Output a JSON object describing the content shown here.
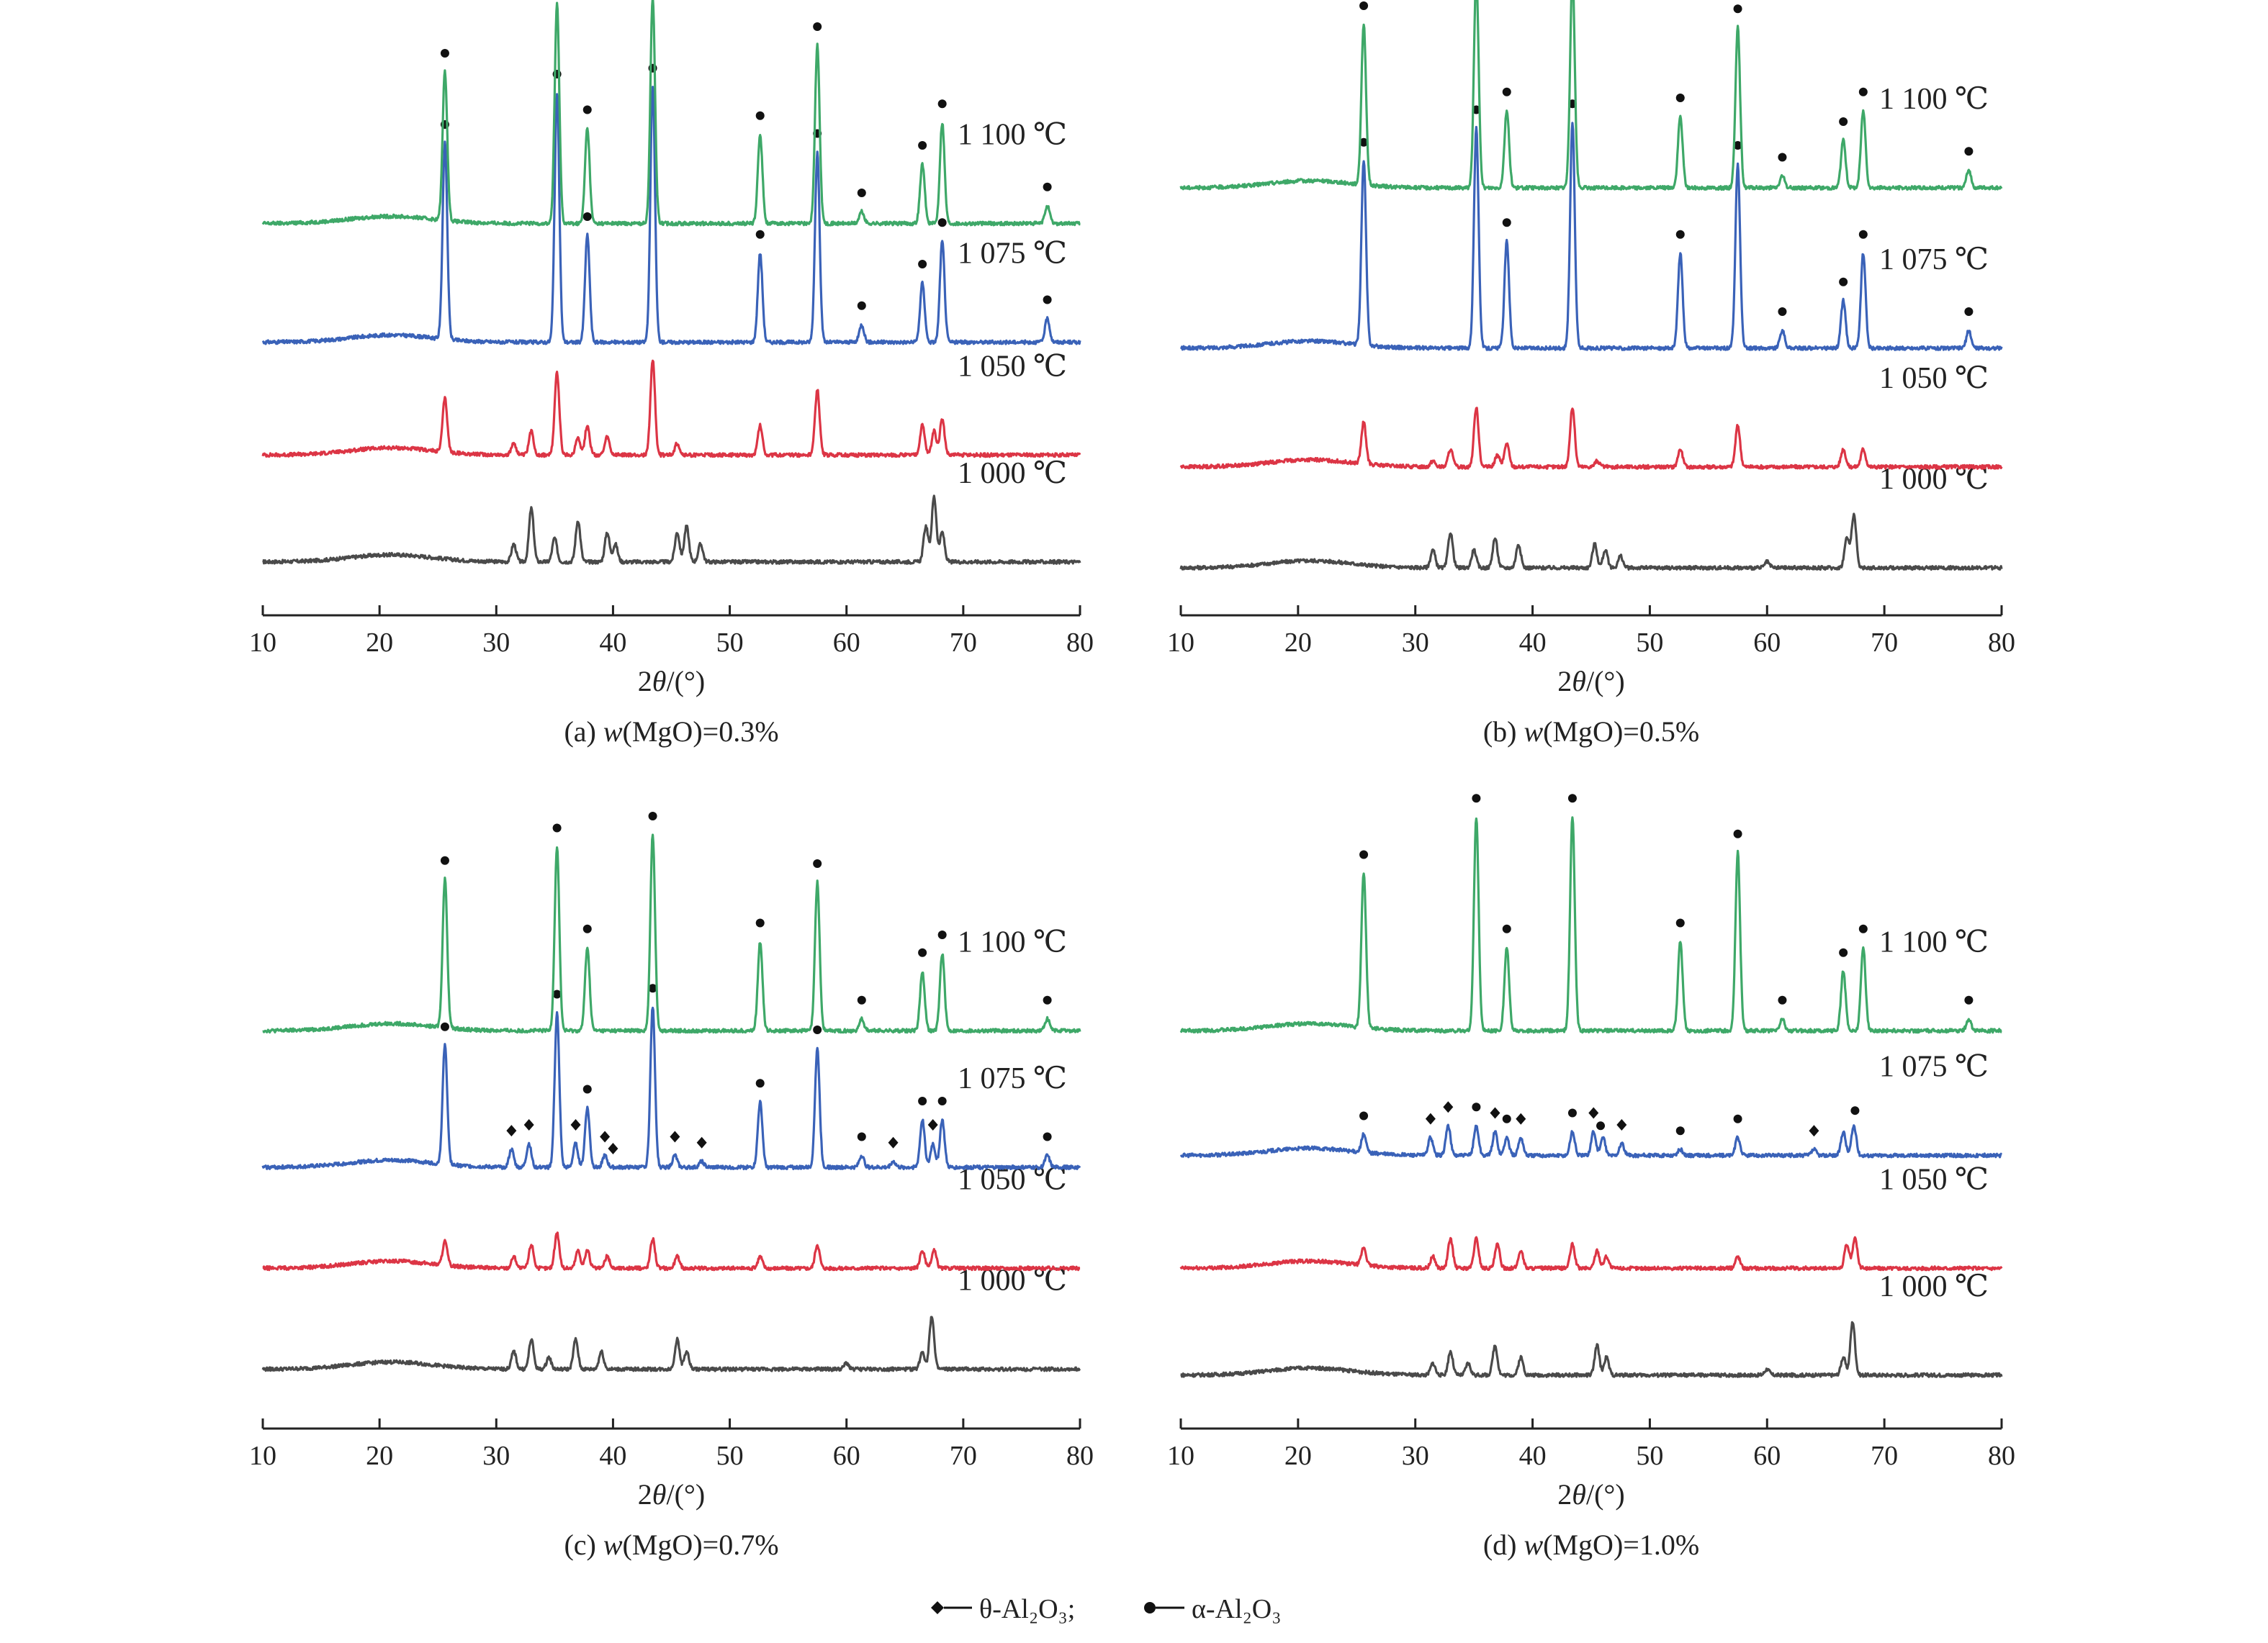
{
  "figure": {
    "legend": {
      "theta_label": "θ-Al₂O₃;",
      "alpha_label": "α-Al₂O₃"
    }
  },
  "colors": {
    "1000": "#4a4a4a",
    "1050": "#dc3545",
    "1075": "#3a62b8",
    "1100": "#3ea868",
    "marker": "#111111"
  },
  "chart_data": [
    {
      "panel": "a",
      "type": "line",
      "caption_prefix": "(a) ",
      "caption_var": "w",
      "caption_rest": "(MgO)=0.3%",
      "xlabel_theta": "θ",
      "xlabel_rest": "/(°)",
      "xlim": [
        10,
        80
      ],
      "xticks": [
        10,
        20,
        30,
        40,
        50,
        60,
        70,
        80
      ],
      "series": [
        {
          "name": "1 000 ℃",
          "temp": "1000",
          "baseline": 0.09,
          "peaks": [
            [
              31.5,
              0.03
            ],
            [
              33,
              0.09
            ],
            [
              35,
              0.04
            ],
            [
              37,
              0.07
            ],
            [
              39.5,
              0.05
            ],
            [
              40.2,
              0.03
            ],
            [
              45.5,
              0.05
            ],
            [
              46.3,
              0.06
            ],
            [
              47.5,
              0.03
            ],
            [
              66.8,
              0.06
            ],
            [
              67.5,
              0.11
            ],
            [
              68.2,
              0.05
            ]
          ],
          "alpha": [],
          "theta": []
        },
        {
          "name": "1 050 ℃",
          "temp": "1050",
          "baseline": 0.27,
          "peaks": [
            [
              25.6,
              0.09
            ],
            [
              31.5,
              0.02
            ],
            [
              33,
              0.04
            ],
            [
              35.2,
              0.14
            ],
            [
              37,
              0.03
            ],
            [
              37.8,
              0.05
            ],
            [
              39.5,
              0.03
            ],
            [
              43.4,
              0.16
            ],
            [
              45.5,
              0.02
            ],
            [
              52.6,
              0.05
            ],
            [
              57.5,
              0.11
            ],
            [
              66.5,
              0.05
            ],
            [
              67.5,
              0.04
            ],
            [
              68.2,
              0.06
            ]
          ],
          "alpha": [],
          "theta": []
        },
        {
          "name": "1 075 ℃",
          "temp": "1075",
          "baseline": 0.46,
          "peaks": [
            [
              25.6,
              0.33
            ],
            [
              35.2,
              0.42
            ],
            [
              37.8,
              0.18
            ],
            [
              43.4,
              0.43
            ],
            [
              52.6,
              0.15
            ],
            [
              57.5,
              0.32
            ],
            [
              61.3,
              0.03
            ],
            [
              66.5,
              0.1
            ],
            [
              68.2,
              0.17
            ],
            [
              77.2,
              0.04
            ]
          ],
          "alpha": [
            25.6,
            35.2,
            37.8,
            43.4,
            52.6,
            57.5,
            61.3,
            66.5,
            68.2,
            77.2
          ],
          "theta": []
        },
        {
          "name": "1 100 ℃",
          "temp": "1100",
          "baseline": 0.66,
          "peaks": [
            [
              25.6,
              0.25
            ],
            [
              35.2,
              0.37
            ],
            [
              37.8,
              0.16
            ],
            [
              43.4,
              0.38
            ],
            [
              52.6,
              0.15
            ],
            [
              57.5,
              0.3
            ],
            [
              61.3,
              0.02
            ],
            [
              66.5,
              0.1
            ],
            [
              68.2,
              0.17
            ],
            [
              77.2,
              0.03
            ]
          ],
          "alpha": [
            25.6,
            35.2,
            37.8,
            43.4,
            52.6,
            57.5,
            61.3,
            66.5,
            68.2,
            77.2
          ],
          "theta": []
        }
      ]
    },
    {
      "panel": "b",
      "type": "line",
      "caption_prefix": "(b) ",
      "caption_var": "w",
      "caption_rest": "(MgO)=0.5%",
      "xlabel_theta": "θ",
      "xlabel_rest": "/(°)",
      "xlim": [
        10,
        80
      ],
      "xticks": [
        10,
        20,
        30,
        40,
        50,
        60,
        70,
        80
      ],
      "series": [
        {
          "name": "1 000 ℃",
          "temp": "1000",
          "baseline": 0.08,
          "peaks": [
            [
              31.5,
              0.03
            ],
            [
              33,
              0.06
            ],
            [
              35,
              0.03
            ],
            [
              36.8,
              0.05
            ],
            [
              38.8,
              0.04
            ],
            [
              45.3,
              0.04
            ],
            [
              46.2,
              0.03
            ],
            [
              47.5,
              0.02
            ],
            [
              60,
              0.01
            ],
            [
              66.8,
              0.05
            ],
            [
              67.4,
              0.09
            ]
          ],
          "alpha": [],
          "theta": []
        },
        {
          "name": "1 050 ℃",
          "temp": "1050",
          "baseline": 0.25,
          "peaks": [
            [
              25.6,
              0.07
            ],
            [
              31.5,
              0.01
            ],
            [
              33,
              0.03
            ],
            [
              35.2,
              0.1
            ],
            [
              37,
              0.02
            ],
            [
              37.8,
              0.04
            ],
            [
              43.4,
              0.1
            ],
            [
              45.5,
              0.01
            ],
            [
              52.6,
              0.03
            ],
            [
              57.5,
              0.07
            ],
            [
              66.5,
              0.03
            ],
            [
              68.2,
              0.03
            ]
          ],
          "alpha": [],
          "theta": []
        },
        {
          "name": "1 075 ℃",
          "temp": "1075",
          "baseline": 0.45,
          "peaks": [
            [
              25.6,
              0.31
            ],
            [
              35.2,
              0.37
            ],
            [
              37.8,
              0.18
            ],
            [
              43.4,
              0.38
            ],
            [
              52.6,
              0.16
            ],
            [
              57.5,
              0.31
            ],
            [
              61.3,
              0.03
            ],
            [
              66.5,
              0.08
            ],
            [
              68.2,
              0.16
            ],
            [
              77.2,
              0.03
            ]
          ],
          "alpha": [
            25.6,
            35.2,
            37.8,
            43.4,
            52.6,
            57.5,
            61.3,
            66.5,
            68.2,
            77.2
          ],
          "theta": []
        },
        {
          "name": "1 100 ℃",
          "temp": "1100",
          "baseline": 0.72,
          "peaks": [
            [
              25.6,
              0.27
            ],
            [
              35.2,
              0.36
            ],
            [
              37.8,
              0.13
            ],
            [
              43.4,
              0.36
            ],
            [
              52.6,
              0.12
            ],
            [
              57.5,
              0.27
            ],
            [
              61.3,
              0.02
            ],
            [
              66.5,
              0.08
            ],
            [
              68.2,
              0.13
            ],
            [
              77.2,
              0.03
            ]
          ],
          "alpha": [
            25.6,
            35.2,
            37.8,
            43.4,
            52.6,
            57.5,
            61.3,
            66.5,
            68.2,
            77.2
          ],
          "theta": []
        }
      ]
    },
    {
      "panel": "c",
      "type": "line",
      "caption_prefix": "(c) ",
      "caption_var": "w",
      "caption_rest": "(MgO)=0.7%",
      "xlabel_theta": "θ",
      "xlabel_rest": "/(°)",
      "xlim": [
        10,
        80
      ],
      "xticks": [
        10,
        20,
        30,
        40,
        50,
        60,
        70,
        80
      ],
      "series": [
        {
          "name": "1 000 ℃",
          "temp": "1000",
          "baseline": 0.1,
          "peaks": [
            [
              31.5,
              0.03
            ],
            [
              33,
              0.05
            ],
            [
              34.5,
              0.02
            ],
            [
              36.8,
              0.05
            ],
            [
              39,
              0.03
            ],
            [
              45.5,
              0.05
            ],
            [
              46.3,
              0.03
            ],
            [
              60,
              0.01
            ],
            [
              66.5,
              0.03
            ],
            [
              67.3,
              0.09
            ]
          ],
          "alpha": [],
          "theta": []
        },
        {
          "name": "1 050 ℃",
          "temp": "1050",
          "baseline": 0.27,
          "peaks": [
            [
              25.6,
              0.04
            ],
            [
              31.5,
              0.02
            ],
            [
              33,
              0.04
            ],
            [
              35.2,
              0.06
            ],
            [
              37,
              0.03
            ],
            [
              37.8,
              0.03
            ],
            [
              39.5,
              0.02
            ],
            [
              43.4,
              0.05
            ],
            [
              45.5,
              0.02
            ],
            [
              52.6,
              0.02
            ],
            [
              57.5,
              0.04
            ],
            [
              66.5,
              0.03
            ],
            [
              67.5,
              0.03
            ]
          ],
          "alpha": [],
          "theta": []
        },
        {
          "name": "1 075 ℃",
          "temp": "1075",
          "baseline": 0.44,
          "peaks": [
            [
              25.6,
              0.2
            ],
            [
              31.3,
              0.03
            ],
            [
              32.8,
              0.04
            ],
            [
              35.2,
              0.26
            ],
            [
              36.8,
              0.04
            ],
            [
              37.8,
              0.1
            ],
            [
              39.3,
              0.02
            ],
            [
              43.4,
              0.27
            ],
            [
              45.3,
              0.02
            ],
            [
              47.6,
              0.01
            ],
            [
              52.6,
              0.11
            ],
            [
              57.5,
              0.2
            ],
            [
              61.3,
              0.02
            ],
            [
              64,
              0.01
            ],
            [
              66.5,
              0.08
            ],
            [
              67.4,
              0.04
            ],
            [
              68.2,
              0.08
            ],
            [
              77.2,
              0.02
            ]
          ],
          "alpha": [
            25.6,
            35.2,
            37.8,
            43.4,
            52.6,
            57.5,
            61.3,
            66.5,
            68.2,
            77.2
          ],
          "theta": [
            31.3,
            32.8,
            36.8,
            39.3,
            40,
            45.3,
            47.6,
            64,
            67.4
          ]
        },
        {
          "name": "1 100 ℃",
          "temp": "1100",
          "baseline": 0.67,
          "peaks": [
            [
              25.6,
              0.25
            ],
            [
              35.2,
              0.31
            ],
            [
              37.8,
              0.14
            ],
            [
              43.4,
              0.33
            ],
            [
              52.6,
              0.15
            ],
            [
              57.5,
              0.25
            ],
            [
              61.3,
              0.02
            ],
            [
              66.5,
              0.1
            ],
            [
              68.2,
              0.13
            ],
            [
              77.2,
              0.02
            ]
          ],
          "alpha": [
            25.6,
            35.2,
            37.8,
            43.4,
            52.6,
            57.5,
            61.3,
            66.5,
            68.2,
            77.2
          ],
          "theta": []
        }
      ]
    },
    {
      "panel": "d",
      "type": "line",
      "caption_prefix": "(d) ",
      "caption_var": "w",
      "caption_rest": "(MgO)=1.0%",
      "xlabel_theta": "θ",
      "xlabel_rest": "/(°)",
      "xlim": [
        10,
        80
      ],
      "xticks": [
        10,
        20,
        30,
        40,
        50,
        60,
        70,
        80
      ],
      "series": [
        {
          "name": "1 000 ℃",
          "temp": "1000",
          "baseline": 0.09,
          "peaks": [
            [
              31.5,
              0.02
            ],
            [
              33,
              0.04
            ],
            [
              34.5,
              0.02
            ],
            [
              36.8,
              0.05
            ],
            [
              39,
              0.03
            ],
            [
              45.5,
              0.05
            ],
            [
              46.3,
              0.03
            ],
            [
              60,
              0.01
            ],
            [
              66.5,
              0.03
            ],
            [
              67.3,
              0.09
            ]
          ],
          "alpha": [],
          "theta": []
        },
        {
          "name": "1 050 ℃",
          "temp": "1050",
          "baseline": 0.27,
          "peaks": [
            [
              25.6,
              0.03
            ],
            [
              31.5,
              0.02
            ],
            [
              33,
              0.05
            ],
            [
              35.2,
              0.05
            ],
            [
              37,
              0.04
            ],
            [
              39,
              0.03
            ],
            [
              43.4,
              0.04
            ],
            [
              45.5,
              0.03
            ],
            [
              46.3,
              0.02
            ],
            [
              57.5,
              0.02
            ],
            [
              66.8,
              0.04
            ],
            [
              67.5,
              0.05
            ]
          ],
          "alpha": [],
          "theta": []
        },
        {
          "name": "1 075 ℃",
          "temp": "1075",
          "baseline": 0.46,
          "peaks": [
            [
              25.6,
              0.03
            ],
            [
              31.3,
              0.03
            ],
            [
              32.8,
              0.05
            ],
            [
              35.2,
              0.05
            ],
            [
              36.8,
              0.04
            ],
            [
              37.8,
              0.03
            ],
            [
              39,
              0.03
            ],
            [
              43.4,
              0.04
            ],
            [
              45.2,
              0.04
            ],
            [
              46,
              0.03
            ],
            [
              47.6,
              0.02
            ],
            [
              52.6,
              0.01
            ],
            [
              57.5,
              0.03
            ],
            [
              64,
              0.01
            ],
            [
              66.5,
              0.04
            ],
            [
              67.4,
              0.05
            ]
          ],
          "alpha": [
            25.6,
            35.2,
            37.8,
            43.4,
            45.8,
            52.6,
            57.5,
            67.5
          ],
          "theta": [
            31.3,
            32.8,
            36.8,
            39,
            45.2,
            47.6,
            64
          ]
        },
        {
          "name": "1 100 ℃",
          "temp": "1100",
          "baseline": 0.67,
          "peaks": [
            [
              25.6,
              0.26
            ],
            [
              35.2,
              0.36
            ],
            [
              37.8,
              0.14
            ],
            [
              43.4,
              0.36
            ],
            [
              52.6,
              0.15
            ],
            [
              57.5,
              0.3
            ],
            [
              61.3,
              0.02
            ],
            [
              66.5,
              0.1
            ],
            [
              68.2,
              0.14
            ],
            [
              77.2,
              0.02
            ]
          ],
          "alpha": [
            25.6,
            35.2,
            37.8,
            43.4,
            52.6,
            57.5,
            61.3,
            66.5,
            68.2,
            77.2
          ],
          "theta": []
        }
      ]
    }
  ]
}
